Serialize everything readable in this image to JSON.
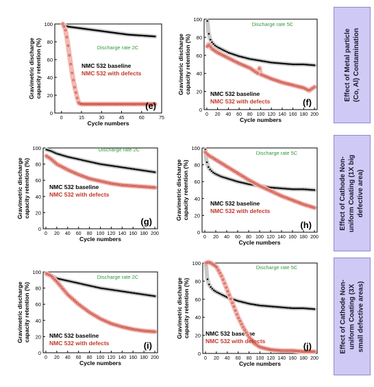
{
  "chart_data": [
    {
      "panel": "(e)",
      "type": "scatter",
      "annotation": "Discharge rate 2C",
      "xlabel": "Cycle numbers",
      "ylabel": [
        "Gravimetric discharge",
        "capacity retention (%)"
      ],
      "xlim": [
        -5,
        75
      ],
      "ylim": [
        0,
        100
      ],
      "xticks": [
        0,
        15,
        30,
        45,
        60,
        75
      ],
      "yticks": [
        0,
        20,
        40,
        60,
        80,
        100
      ],
      "legend": "left-middle",
      "series": [
        {
          "name": "NMC  532 baseline",
          "color": "#000000",
          "x": [
            1,
            3,
            5,
            10,
            20,
            30,
            40,
            50,
            60,
            70
          ],
          "y": [
            100,
            98,
            97,
            96,
            94,
            92,
            90,
            88,
            87,
            86
          ]
        },
        {
          "name": "NMC  532 with defects",
          "color": "#c0392b",
          "x": [
            1,
            2,
            3,
            4,
            5,
            6,
            7,
            8,
            9,
            10,
            11,
            12,
            13,
            15,
            20,
            30,
            40,
            50,
            60,
            70
          ],
          "y": [
            100,
            97,
            93,
            85,
            75,
            64,
            54,
            44,
            36,
            28,
            22,
            16,
            11,
            10,
            10,
            10,
            10,
            10,
            10,
            10
          ]
        }
      ]
    },
    {
      "panel": "(f)",
      "type": "scatter",
      "annotation": "Discharge rate 5C",
      "xlabel": "Cycle numbers",
      "ylabel": [
        "Gravimetric discharge",
        "capacity retention (%)"
      ],
      "xlim": [
        -5,
        205
      ],
      "ylim": [
        0,
        100
      ],
      "xticks": [
        0,
        20,
        40,
        60,
        80,
        100,
        120,
        140,
        160,
        180,
        200
      ],
      "yticks": [
        0,
        20,
        40,
        60,
        80,
        100
      ],
      "legend": "lower-left",
      "series": [
        {
          "name": "NMC  532 baseline",
          "color": "#000000",
          "x": [
            1,
            3,
            6,
            10,
            15,
            20,
            30,
            40,
            60,
            80,
            100,
            120,
            140,
            160,
            180,
            200
          ],
          "y": [
            98,
            86,
            78,
            74,
            71,
            69,
            66,
            63,
            59,
            56,
            54,
            52,
            51,
            50,
            50,
            49
          ]
        },
        {
          "name": "NMC  532 with defects",
          "color": "#c0392b",
          "x": [
            1,
            3,
            6,
            10,
            20,
            40,
            60,
            80,
            95,
            98,
            100,
            120,
            140,
            160,
            180,
            190,
            200
          ],
          "y": [
            70,
            72,
            70,
            67,
            63,
            57,
            51,
            46,
            40,
            46,
            39,
            34,
            30,
            27,
            24,
            21,
            25
          ]
        }
      ]
    },
    {
      "panel": "(g)",
      "type": "scatter",
      "annotation": "Discharge rate 2C",
      "xlabel": "Cycle numbers",
      "ylabel": [
        "Gravimetric discharge",
        "capacity retention (%)"
      ],
      "xlim": [
        -5,
        205
      ],
      "ylim": [
        0,
        100
      ],
      "xticks": [
        0,
        20,
        40,
        60,
        80,
        100,
        120,
        140,
        160,
        180,
        200
      ],
      "yticks": [
        0,
        20,
        40,
        60,
        80,
        100
      ],
      "legend": "left-middle",
      "series": [
        {
          "name": "NMC  532 baseline",
          "color": "#000000",
          "x": [
            1,
            10,
            20,
            40,
            60,
            80,
            100,
            120,
            140,
            160,
            180,
            200
          ],
          "y": [
            98,
            96,
            93,
            89,
            86,
            83,
            80,
            78,
            76,
            74,
            72,
            70
          ]
        },
        {
          "name": "NMC  532 with defects",
          "color": "#c0392b",
          "x": [
            1,
            10,
            20,
            40,
            60,
            80,
            100,
            120,
            140,
            160,
            180,
            200
          ],
          "y": [
            90,
            86,
            80,
            73,
            67,
            62,
            59,
            56,
            54,
            53,
            52,
            51
          ]
        }
      ]
    },
    {
      "panel": "(h)",
      "type": "scatter",
      "annotation": "Discharge rate 5C",
      "xlabel": "Cycle numbers",
      "ylabel": [
        "Gravimetric discharge",
        "capacity retention (%)"
      ],
      "xlim": [
        -5,
        205
      ],
      "ylim": [
        0,
        100
      ],
      "xticks": [
        0,
        20,
        40,
        60,
        80,
        100,
        120,
        140,
        160,
        180,
        200
      ],
      "yticks": [
        0,
        20,
        40,
        60,
        80,
        100
      ],
      "legend": "lower-left",
      "series": [
        {
          "name": "NMC  532 baseline",
          "color": "#000000",
          "x": [
            1,
            3,
            6,
            10,
            15,
            20,
            30,
            40,
            60,
            80,
            100,
            120,
            140,
            160,
            180,
            200
          ],
          "y": [
            98,
            85,
            78,
            74,
            71,
            69,
            66,
            64,
            60,
            57,
            55,
            53,
            52,
            51,
            51,
            50
          ]
        },
        {
          "name": "NMC  532 with defects",
          "color": "#c0392b",
          "x": [
            1,
            5,
            10,
            20,
            40,
            60,
            80,
            100,
            120,
            140,
            160,
            180,
            200
          ],
          "y": [
            95,
            92,
            90,
            86,
            78,
            70,
            62,
            55,
            49,
            43,
            38,
            33,
            29
          ]
        }
      ]
    },
    {
      "panel": "(i)",
      "type": "scatter",
      "annotation": "Discharge rate 2C",
      "xlabel": "Cycle numbers",
      "ylabel": [
        "Gravimetric discharge",
        "capacity retention (%)"
      ],
      "xlim": [
        -5,
        205
      ],
      "ylim": [
        0,
        100
      ],
      "xticks": [
        0,
        20,
        40,
        60,
        80,
        100,
        120,
        140,
        160,
        180,
        200
      ],
      "yticks": [
        0,
        20,
        40,
        60,
        80,
        100
      ],
      "legend": "lower-left",
      "series": [
        {
          "name": "NMC  532 baseline",
          "color": "#000000",
          "x": [
            1,
            10,
            20,
            40,
            60,
            80,
            100,
            120,
            140,
            160,
            180,
            200
          ],
          "y": [
            97,
            95,
            92,
            89,
            86,
            83,
            80,
            78,
            76,
            74,
            72,
            70
          ]
        },
        {
          "name": "NMC  532 with defects",
          "color": "#c0392b",
          "x": [
            1,
            10,
            20,
            30,
            40,
            60,
            80,
            100,
            120,
            140,
            160,
            180,
            200
          ],
          "y": [
            98,
            95,
            88,
            80,
            72,
            60,
            50,
            42,
            36,
            32,
            29,
            27,
            26
          ]
        }
      ]
    },
    {
      "panel": "(j)",
      "type": "scatter",
      "annotation": "Discharge rate 5C",
      "xlabel": "Cycle numbers",
      "ylabel": [
        "Gravimetric discharge",
        "capacity retention (%)"
      ],
      "xlim": [
        -5,
        205
      ],
      "ylim": [
        0,
        100
      ],
      "xticks": [
        0,
        20,
        40,
        60,
        80,
        100,
        120,
        140,
        160,
        180,
        200
      ],
      "yticks": [
        0,
        20,
        40,
        60,
        80,
        100
      ],
      "legend": "lower-left",
      "series": [
        {
          "name": "NMC  532 baseline",
          "color": "#000000",
          "x": [
            1,
            3,
            6,
            10,
            15,
            20,
            30,
            40,
            60,
            80,
            100,
            120,
            140,
            160,
            180,
            200
          ],
          "y": [
            98,
            84,
            77,
            73,
            70,
            68,
            65,
            62,
            58,
            55,
            53,
            52,
            51,
            50,
            50,
            49
          ]
        },
        {
          "name": "NMC  532 with defects",
          "color": "#c0392b",
          "x": [
            1,
            5,
            10,
            20,
            30,
            40,
            50,
            60,
            70,
            80,
            90,
            100,
            120,
            140,
            160,
            180,
            200
          ],
          "y": [
            100,
            101,
            100,
            96,
            85,
            70,
            55,
            40,
            28,
            18,
            11,
            7,
            4,
            3,
            3,
            2,
            2
          ]
        }
      ]
    }
  ],
  "side_labels": [
    [
      "Effect of Metal particle",
      "(Co, Al) Contamination"
    ],
    [
      "Effect of Cathode Non-",
      "uniform Coating (1X big",
      "defective area)"
    ],
    [
      "Effect of Cathode Non-",
      "uniform Coating (3X",
      "small defective areas)"
    ]
  ]
}
